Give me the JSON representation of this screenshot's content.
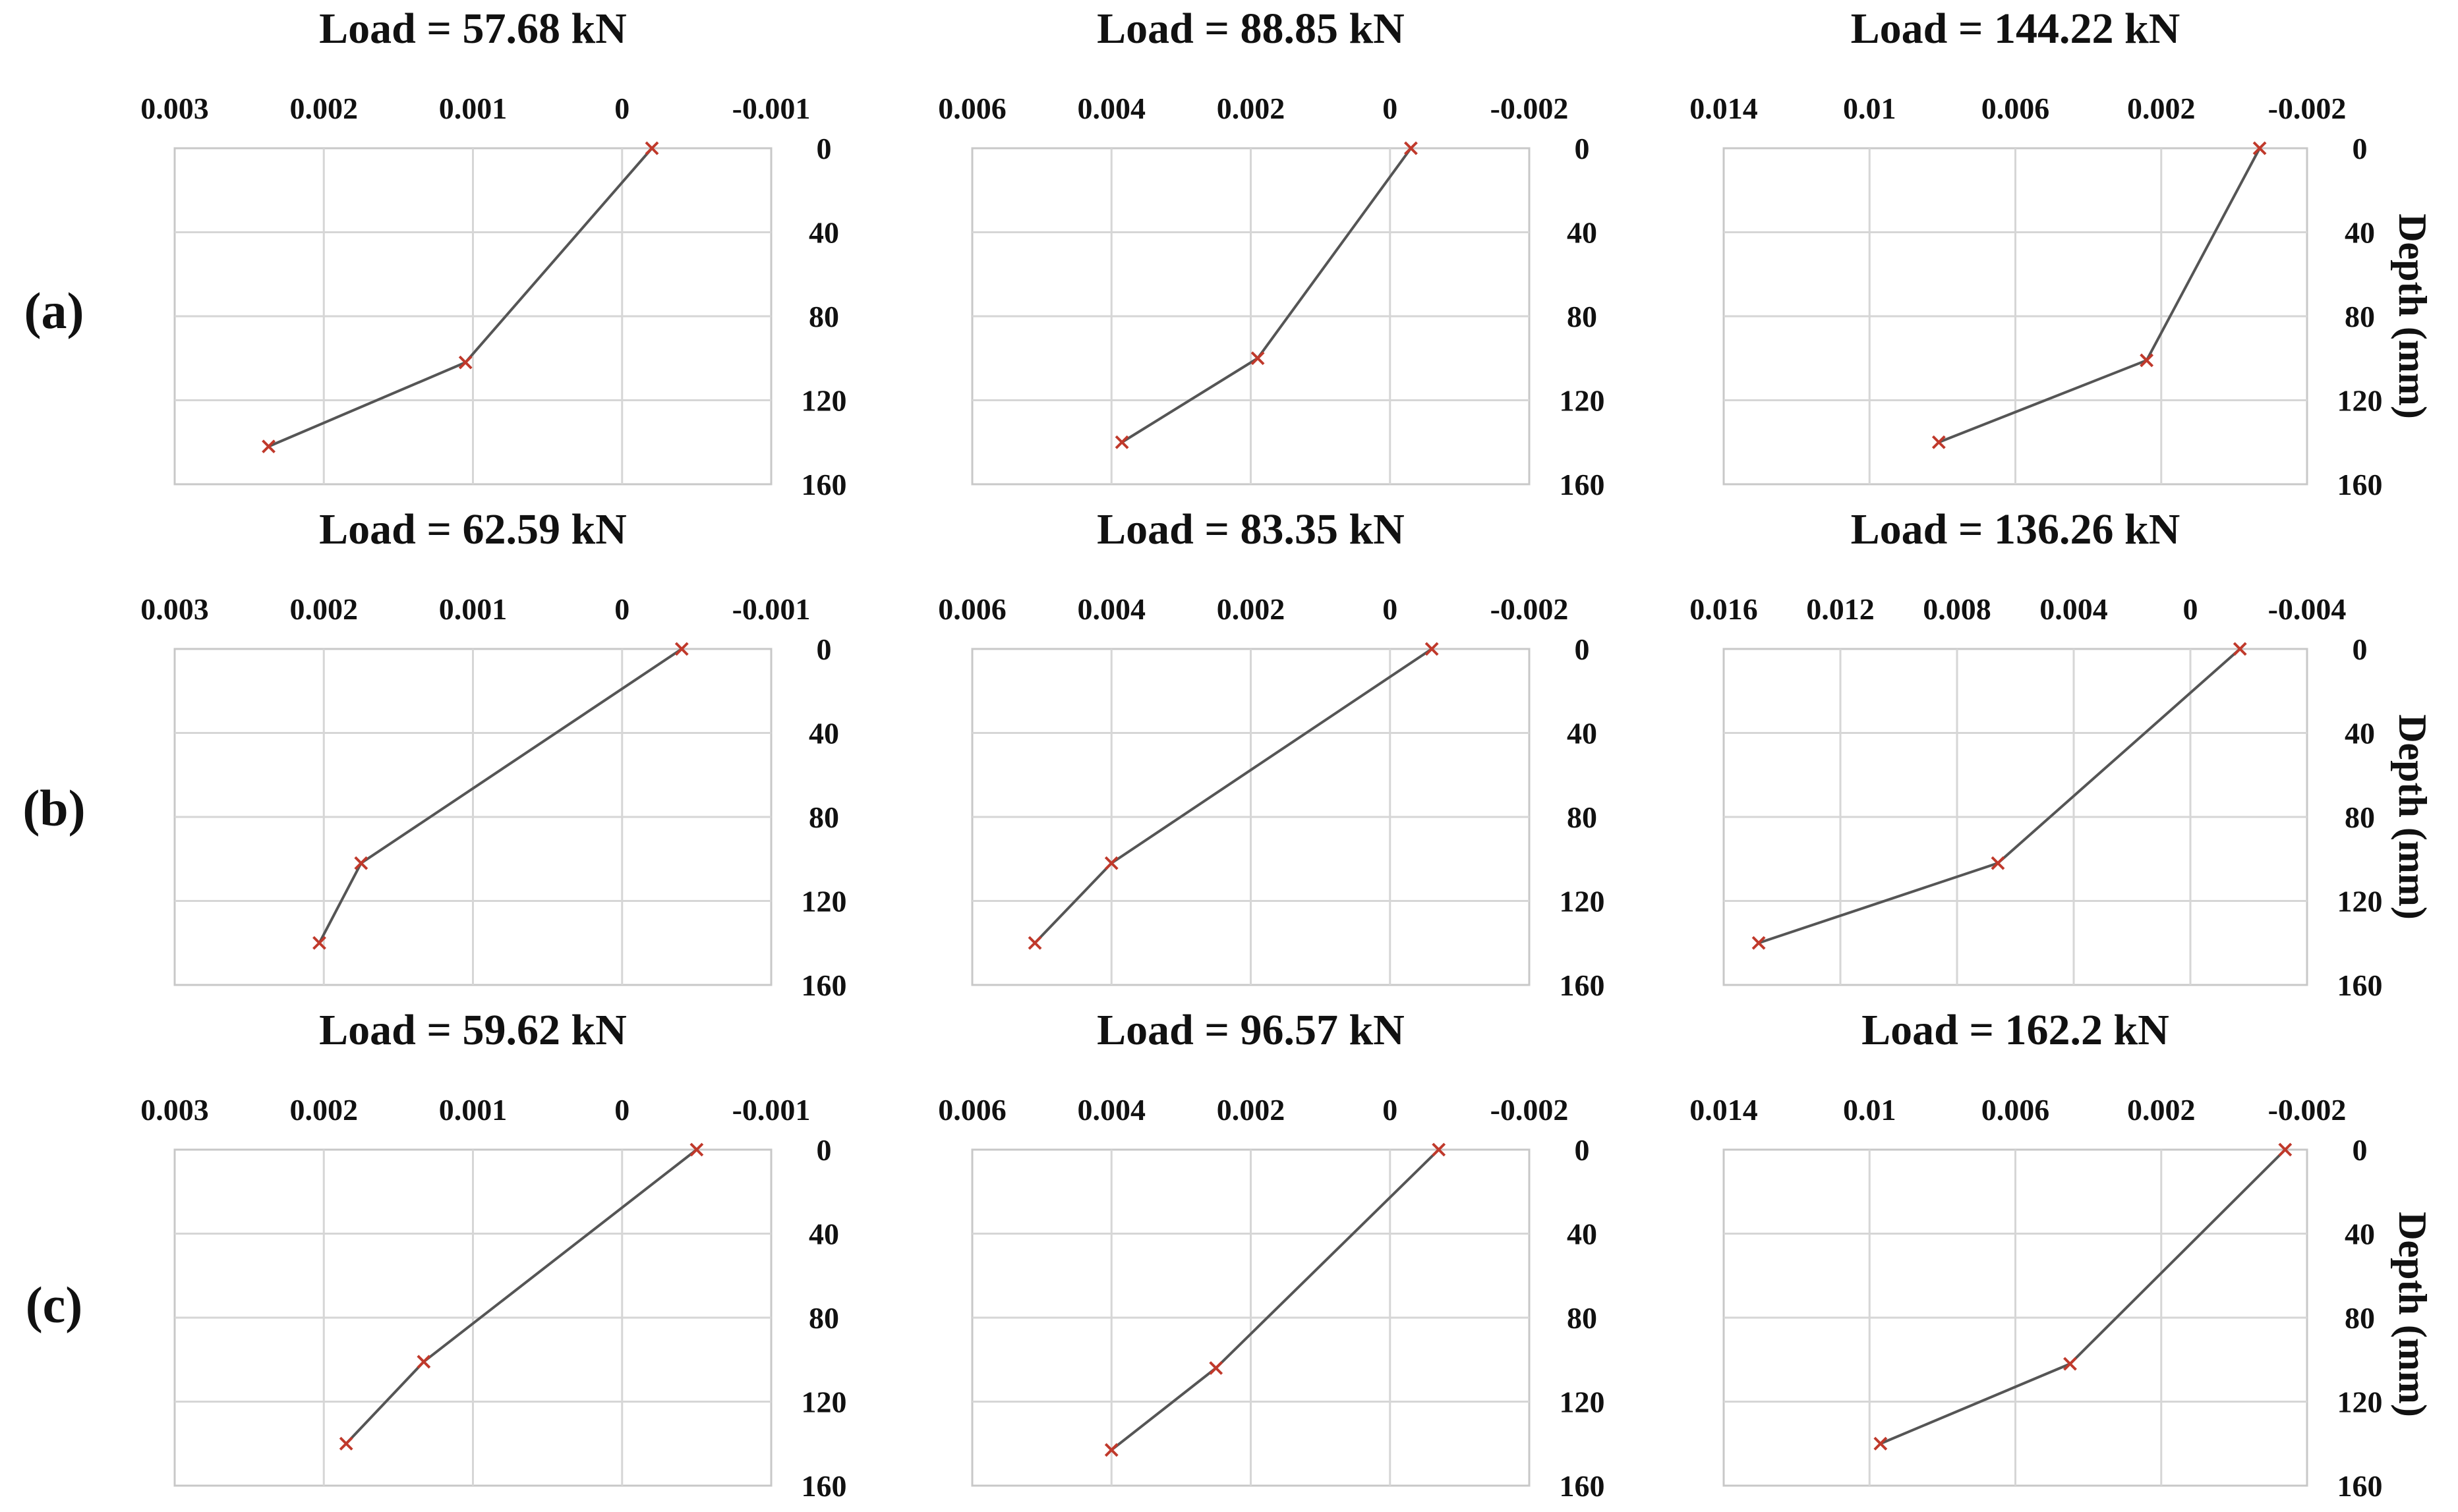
{
  "row_labels": [
    "(a)",
    "(b)",
    "(c)"
  ],
  "ylabel": "Depth (mm)",
  "chart_data": [
    {
      "type": "line",
      "row": 0,
      "col": 0,
      "title": "Load = 57.68 kN",
      "xticks": [
        "0.003",
        "0.002",
        "0.001",
        "0",
        "-0.001"
      ],
      "xtick_values": [
        0.003,
        0.002,
        0.001,
        0,
        -0.001
      ],
      "xlim": [
        0.003,
        -0.001
      ],
      "xaxis_reversed": true,
      "yticks": [
        "0",
        "40",
        "80",
        "120",
        "160"
      ],
      "ylim": [
        0,
        160
      ],
      "yaxis_reversed": true,
      "vgrid": [
        0.002,
        0.001,
        0
      ],
      "hgrid": [
        40,
        80,
        120
      ],
      "series": [
        {
          "x": [
            -0.0002,
            0.00105,
            0.00237
          ],
          "y": [
            0,
            102,
            142
          ]
        }
      ]
    },
    {
      "type": "line",
      "row": 0,
      "col": 1,
      "title": "Load = 88.85  kN",
      "xticks": [
        "0.006",
        "0.004",
        "0.002",
        "0",
        "-0.002"
      ],
      "xtick_values": [
        0.006,
        0.004,
        0.002,
        0,
        -0.002
      ],
      "xlim": [
        0.006,
        -0.002
      ],
      "xaxis_reversed": true,
      "yticks": [
        "0",
        "40",
        "80",
        "120",
        "160"
      ],
      "ylim": [
        0,
        160
      ],
      "yaxis_reversed": true,
      "vgrid": [
        0.004,
        0.002,
        0
      ],
      "hgrid": [
        40,
        80,
        120
      ],
      "series": [
        {
          "x": [
            -0.0003,
            0.0019,
            0.00385
          ],
          "y": [
            0,
            100,
            140
          ]
        }
      ]
    },
    {
      "type": "line",
      "row": 0,
      "col": 2,
      "title": "Load = 144.22 kN",
      "xticks": [
        "0.014",
        "0.01",
        "0.006",
        "0.002",
        "-0.002"
      ],
      "xtick_values": [
        0.014,
        0.01,
        0.006,
        0.002,
        -0.002
      ],
      "xlim": [
        0.014,
        -0.002
      ],
      "xaxis_reversed": true,
      "yticks": [
        "0",
        "40",
        "80",
        "120",
        "160"
      ],
      "ylim": [
        0,
        160
      ],
      "yaxis_reversed": true,
      "vgrid": [
        0.01,
        0.006,
        0.002
      ],
      "hgrid": [
        40,
        80,
        120
      ],
      "series": [
        {
          "x": [
            -0.0007,
            0.0024,
            0.0081
          ],
          "y": [
            0,
            101,
            140
          ]
        }
      ]
    },
    {
      "type": "line",
      "row": 1,
      "col": 0,
      "title": "Load = 62.59 kN",
      "xticks": [
        "0.003",
        "0.002",
        "0.001",
        "0",
        "-0.001"
      ],
      "xtick_values": [
        0.003,
        0.002,
        0.001,
        0,
        -0.001
      ],
      "xlim": [
        0.003,
        -0.001
      ],
      "xaxis_reversed": true,
      "yticks": [
        "0",
        "40",
        "80",
        "120",
        "160"
      ],
      "ylim": [
        0,
        160
      ],
      "yaxis_reversed": true,
      "vgrid": [
        0.002,
        0.001,
        0
      ],
      "hgrid": [
        40,
        80,
        120
      ],
      "series": [
        {
          "x": [
            -0.0004,
            0.00175,
            0.00203
          ],
          "y": [
            0,
            102,
            140
          ]
        }
      ]
    },
    {
      "type": "line",
      "row": 1,
      "col": 1,
      "title": "Load = 83.35  kN",
      "xticks": [
        "0.006",
        "0.004",
        "0.002",
        "0",
        "-0.002"
      ],
      "xtick_values": [
        0.006,
        0.004,
        0.002,
        0,
        -0.002
      ],
      "xlim": [
        0.006,
        -0.002
      ],
      "xaxis_reversed": true,
      "yticks": [
        "0",
        "40",
        "80",
        "120",
        "160"
      ],
      "ylim": [
        0,
        160
      ],
      "yaxis_reversed": true,
      "vgrid": [
        0.004,
        0.002,
        0
      ],
      "hgrid": [
        40,
        80,
        120
      ],
      "series": [
        {
          "x": [
            -0.0006,
            0.004,
            0.0051
          ],
          "y": [
            0,
            102,
            140
          ]
        }
      ]
    },
    {
      "type": "line",
      "row": 1,
      "col": 2,
      "title": "Load = 136.26 kN",
      "xticks": [
        "0.016",
        "0.012",
        "0.008",
        "0.004",
        "0",
        "-0.004"
      ],
      "xtick_values": [
        0.016,
        0.012,
        0.008,
        0.004,
        0,
        -0.004
      ],
      "xlim": [
        0.016,
        -0.004
      ],
      "xaxis_reversed": true,
      "yticks": [
        "0",
        "40",
        "80",
        "120",
        "160"
      ],
      "ylim": [
        0,
        160
      ],
      "yaxis_reversed": true,
      "vgrid": [
        0.012,
        0.008,
        0.004,
        0
      ],
      "hgrid": [
        40,
        80,
        120
      ],
      "series": [
        {
          "x": [
            -0.0017,
            0.0066,
            0.0148
          ],
          "y": [
            0,
            102,
            140
          ]
        }
      ]
    },
    {
      "type": "line",
      "row": 2,
      "col": 0,
      "title": "Load = 59.62 kN",
      "xticks": [
        "0.003",
        "0.002",
        "0.001",
        "0",
        "-0.001"
      ],
      "xtick_values": [
        0.003,
        0.002,
        0.001,
        0,
        -0.001
      ],
      "xlim": [
        0.003,
        -0.001
      ],
      "xaxis_reversed": true,
      "yticks": [
        "0",
        "40",
        "80",
        "120",
        "160"
      ],
      "ylim": [
        0,
        160
      ],
      "yaxis_reversed": true,
      "vgrid": [
        0.002,
        0.001,
        0
      ],
      "hgrid": [
        40,
        80,
        120
      ],
      "series": [
        {
          "x": [
            -0.0005,
            0.00133,
            0.00185
          ],
          "y": [
            0,
            101,
            140
          ]
        }
      ]
    },
    {
      "type": "line",
      "row": 2,
      "col": 1,
      "title": "Load = 96.57 kN",
      "xticks": [
        "0.006",
        "0.004",
        "0.002",
        "0",
        "-0.002"
      ],
      "xtick_values": [
        0.006,
        0.004,
        0.002,
        0,
        -0.002
      ],
      "xlim": [
        0.006,
        -0.002
      ],
      "xaxis_reversed": true,
      "yticks": [
        "0",
        "40",
        "80",
        "120",
        "160"
      ],
      "ylim": [
        0,
        160
      ],
      "yaxis_reversed": true,
      "vgrid": [
        0.004,
        0.002,
        0
      ],
      "hgrid": [
        40,
        80,
        120
      ],
      "series": [
        {
          "x": [
            -0.0007,
            0.0025,
            0.004
          ],
          "y": [
            0,
            104,
            143
          ]
        }
      ]
    },
    {
      "type": "line",
      "row": 2,
      "col": 2,
      "title": "Load = 162.2 kN",
      "xticks": [
        "0.014",
        "0.01",
        "0.006",
        "0.002",
        "-0.002"
      ],
      "xtick_values": [
        0.014,
        0.01,
        0.006,
        0.002,
        -0.002
      ],
      "xlim": [
        0.014,
        -0.002
      ],
      "xaxis_reversed": true,
      "yticks": [
        "0",
        "40",
        "80",
        "120",
        "160"
      ],
      "ylim": [
        0,
        160
      ],
      "yaxis_reversed": true,
      "vgrid": [
        0.01,
        0.006,
        0.002
      ],
      "hgrid": [
        40,
        80,
        120
      ],
      "series": [
        {
          "x": [
            -0.0014,
            0.0045,
            0.0097
          ],
          "y": [
            0,
            102,
            140
          ]
        }
      ]
    }
  ]
}
